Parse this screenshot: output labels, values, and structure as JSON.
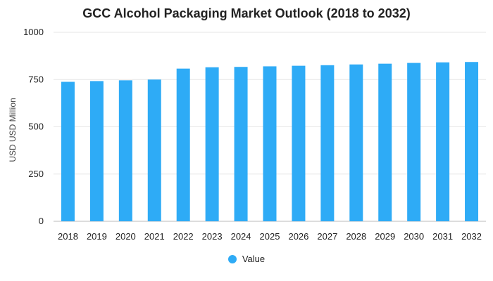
{
  "chart_data": {
    "type": "bar",
    "title": "GCC Alcohol Packaging Market Outlook (2018 to 2032)",
    "xlabel": "",
    "ylabel": "USD USD Million",
    "categories": [
      "2018",
      "2019",
      "2020",
      "2021",
      "2022",
      "2023",
      "2024",
      "2025",
      "2026",
      "2027",
      "2028",
      "2029",
      "2030",
      "2031",
      "2032"
    ],
    "series": [
      {
        "name": "Value",
        "values": [
          738,
          742,
          746,
          750,
          808,
          815,
          817,
          820,
          823,
          826,
          830,
          834,
          838,
          841,
          843
        ]
      }
    ],
    "ylim": [
      0,
      1000
    ],
    "yticks": [
      "0",
      "250",
      "500",
      "750",
      "1000"
    ],
    "grid": true,
    "legend_position": "bottom-center",
    "bar_color": "#2eabf6",
    "grid_color": "#e6e6e6"
  }
}
